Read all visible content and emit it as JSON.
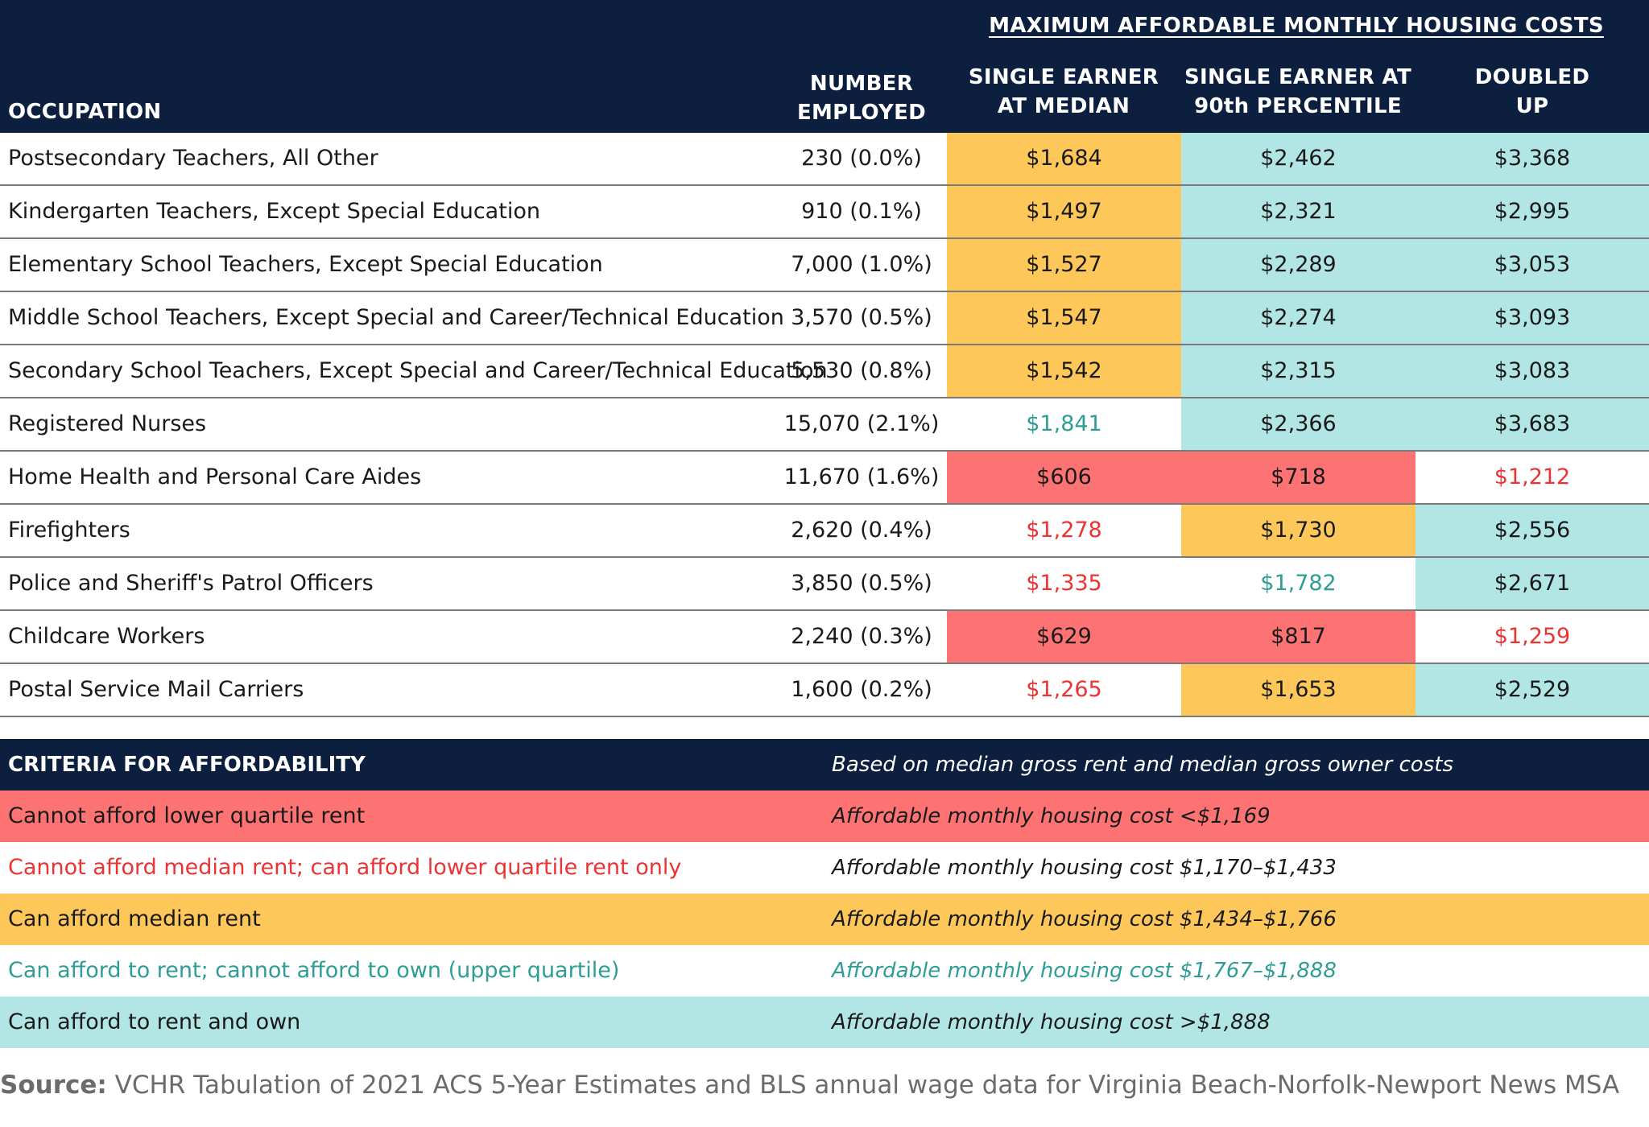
{
  "colors": {
    "navy": "#0c1f3f",
    "cannot_afford_lower_quartile_fill": "#fd7373",
    "cannot_afford_median_text": "#ec3333",
    "can_afford_median_fill": "#fdc859",
    "rent_not_own_text": "#2e9d96",
    "rent_and_own_fill": "#b2e6e4",
    "white": "#ffffff"
  },
  "header": {
    "group_title": "MAXIMUM AFFORDABLE MONTHLY HOUSING COSTS",
    "occupation": "OCCUPATION",
    "number_employed": "NUMBER\nEMPLOYED",
    "single_median": "SINGLE EARNER\nAT MEDIAN",
    "single_p90": "SINGLE EARNER AT\n90th PERCENTILE",
    "doubled_up": "DOUBLED\nUP"
  },
  "chart_data": {
    "type": "table",
    "columns": [
      "OCCUPATION",
      "NUMBER EMPLOYED",
      "SINGLE EARNER AT MEDIAN",
      "SINGLE EARNER AT 90th PERCENTILE",
      "DOUBLED UP"
    ],
    "rows": [
      {
        "occupation": "Postsecondary Teachers, All Other",
        "employed": "230 (0.0%)",
        "cells": [
          {
            "value": "$1,684",
            "category": "median"
          },
          {
            "value": "$2,462",
            "category": "own"
          },
          {
            "value": "$3,368",
            "category": "own"
          }
        ]
      },
      {
        "occupation": "Kindergarten Teachers, Except Special Education",
        "employed": "910 (0.1%)",
        "cells": [
          {
            "value": "$1,497",
            "category": "median"
          },
          {
            "value": "$2,321",
            "category": "own"
          },
          {
            "value": "$2,995",
            "category": "own"
          }
        ]
      },
      {
        "occupation": "Elementary School Teachers, Except Special Education",
        "employed": "7,000 (1.0%)",
        "cells": [
          {
            "value": "$1,527",
            "category": "median"
          },
          {
            "value": "$2,289",
            "category": "own"
          },
          {
            "value": "$3,053",
            "category": "own"
          }
        ]
      },
      {
        "occupation": "Middle School Teachers, Except Special and Career/Technical Education",
        "employed": "3,570 (0.5%)",
        "cells": [
          {
            "value": "$1,547",
            "category": "median"
          },
          {
            "value": "$2,274",
            "category": "own"
          },
          {
            "value": "$3,093",
            "category": "own"
          }
        ]
      },
      {
        "occupation": "Secondary School Teachers, Except Special and Career/Technical Education",
        "employed": "5,530 (0.8%)",
        "cells": [
          {
            "value": "$1,542",
            "category": "median"
          },
          {
            "value": "$2,315",
            "category": "own"
          },
          {
            "value": "$3,083",
            "category": "own"
          }
        ]
      },
      {
        "occupation": "Registered Nurses",
        "employed": "15,070 (2.1%)",
        "cells": [
          {
            "value": "$1,841",
            "category": "rent_only"
          },
          {
            "value": "$2,366",
            "category": "own"
          },
          {
            "value": "$3,683",
            "category": "own"
          }
        ]
      },
      {
        "occupation": "Home Health and Personal Care Aides",
        "employed": "11,670 (1.6%)",
        "cells": [
          {
            "value": "$606",
            "category": "none"
          },
          {
            "value": "$718",
            "category": "none"
          },
          {
            "value": "$1,212",
            "category": "lower_quartile"
          }
        ]
      },
      {
        "occupation": "Firefighters",
        "employed": "2,620 (0.4%)",
        "cells": [
          {
            "value": "$1,278",
            "category": "lower_quartile"
          },
          {
            "value": "$1,730",
            "category": "median"
          },
          {
            "value": "$2,556",
            "category": "own"
          }
        ]
      },
      {
        "occupation": "Police and Sheriff's Patrol Officers",
        "employed": "3,850 (0.5%)",
        "cells": [
          {
            "value": "$1,335",
            "category": "lower_quartile"
          },
          {
            "value": "$1,782",
            "category": "rent_only"
          },
          {
            "value": "$2,671",
            "category": "own"
          }
        ]
      },
      {
        "occupation": "Childcare Workers",
        "employed": "2,240 (0.3%)",
        "cells": [
          {
            "value": "$629",
            "category": "none"
          },
          {
            "value": "$817",
            "category": "none"
          },
          {
            "value": "$1,259",
            "category": "lower_quartile"
          }
        ]
      },
      {
        "occupation": "Postal Service Mail Carriers",
        "employed": "1,600 (0.2%)",
        "cells": [
          {
            "value": "$1,265",
            "category": "lower_quartile"
          },
          {
            "value": "$1,653",
            "category": "median"
          },
          {
            "value": "$2,529",
            "category": "own"
          }
        ]
      }
    ]
  },
  "legend": {
    "title": "CRITERIA FOR AFFORDABILITY",
    "note": "Based on median gross rent and median gross owner costs",
    "items": [
      {
        "category": "none",
        "label": "Cannot afford lower quartile rent",
        "range": "Affordable monthly housing cost <$1,169"
      },
      {
        "category": "lower_quartile",
        "label": "Cannot afford median rent; can afford lower quartile rent only",
        "range": "Affordable monthly housing cost $1,170–$1,433"
      },
      {
        "category": "median",
        "label": "Can afford median rent",
        "range": "Affordable monthly housing cost $1,434–$1,766"
      },
      {
        "category": "rent_only",
        "label": "Can afford to rent; cannot afford to own (upper quartile)",
        "range": "Affordable monthly housing cost $1,767–$1,888"
      },
      {
        "category": "own",
        "label": "Can afford to rent and own",
        "range": "Affordable monthly housing cost >$1,888"
      }
    ]
  },
  "source": {
    "label": "Source:",
    "text": " VCHR Tabulation of 2021 ACS 5-Year Estimates and BLS annual wage data for Virginia Beach-Norfolk-Newport News MSA"
  }
}
